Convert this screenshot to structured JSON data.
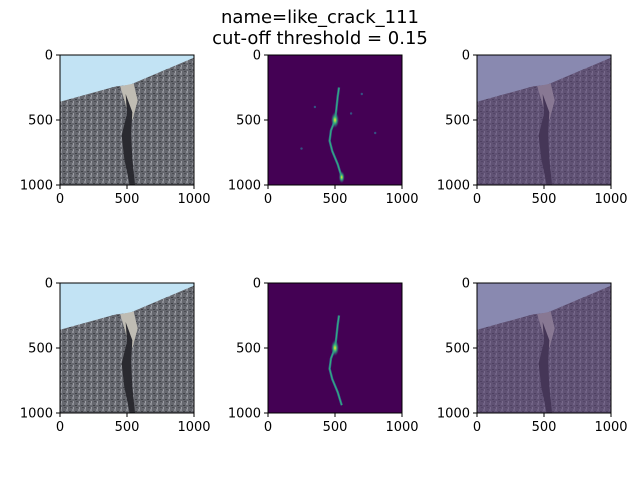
{
  "title": "name=like_crack_111",
  "subtitle": "cut-off threshold = 0.15",
  "chart_data": [
    {
      "type": "image",
      "panel": "original image",
      "row": 1,
      "col": 1,
      "xlim": [
        0,
        1000
      ],
      "ylim": [
        1000,
        0
      ],
      "xticks": [
        0,
        500,
        1000
      ],
      "yticks": [
        0,
        500,
        1000
      ]
    },
    {
      "type": "heatmap",
      "panel": "crack probability map",
      "row": 1,
      "col": 2,
      "xlim": [
        0,
        1000
      ],
      "ylim": [
        1000,
        0
      ],
      "xticks": [
        0,
        500,
        1000
      ],
      "yticks": [
        0,
        500,
        1000
      ]
    },
    {
      "type": "image",
      "panel": "overlay",
      "row": 1,
      "col": 3,
      "xlim": [
        0,
        1000
      ],
      "ylim": [
        1000,
        0
      ],
      "xticks": [
        0,
        500,
        1000
      ],
      "yticks": [
        0,
        500,
        1000
      ]
    },
    {
      "type": "image",
      "panel": "original image",
      "row": 2,
      "col": 1,
      "xlim": [
        0,
        1000
      ],
      "ylim": [
        1000,
        0
      ],
      "xticks": [
        0,
        500,
        1000
      ],
      "yticks": [
        0,
        500,
        1000
      ]
    },
    {
      "type": "heatmap",
      "panel": "thresholded crack map",
      "row": 2,
      "col": 2,
      "xlim": [
        0,
        1000
      ],
      "ylim": [
        1000,
        0
      ],
      "xticks": [
        0,
        500,
        1000
      ],
      "yticks": [
        0,
        500,
        1000
      ]
    },
    {
      "type": "image",
      "panel": "overlay",
      "row": 2,
      "col": 3,
      "xlim": [
        0,
        1000
      ],
      "ylim": [
        1000,
        0
      ],
      "xticks": [
        0,
        500,
        1000
      ],
      "yticks": [
        0,
        500,
        1000
      ]
    }
  ],
  "colors": {
    "sky": "#c2e3f4",
    "asphalt": "#6a6c73",
    "asphalt_dark": "#4a4c52",
    "crack_fill": "#bfbcb3",
    "crack_dark": "#2a2a30",
    "viridis_bg": "#440154",
    "viridis_mid": "#31688e",
    "viridis_hi": "#35b779",
    "viridis_max": "#fde725",
    "overlay_tint": "#5b3f78"
  }
}
